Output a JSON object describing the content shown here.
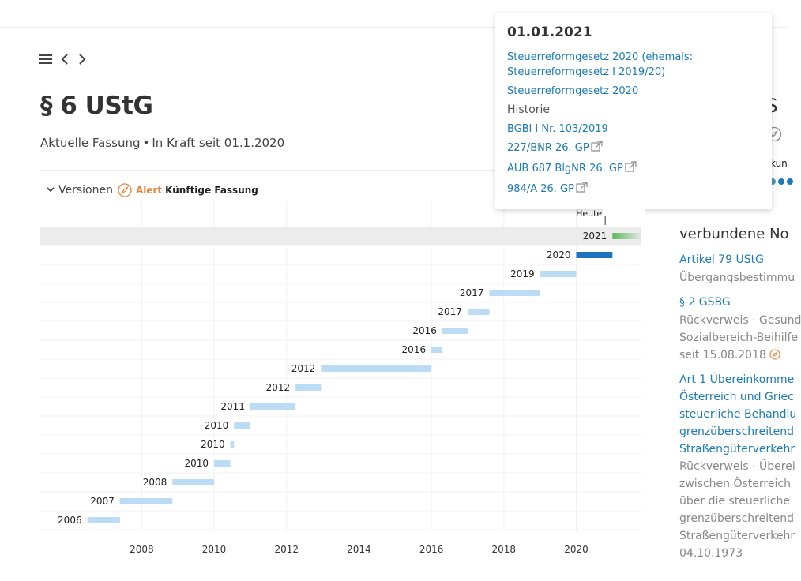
{
  "nav": {
    "menu_icon": "hamburger-icon",
    "back_icon": "chevron-left-icon",
    "forward_icon": "chevron-right-icon"
  },
  "law": {
    "title": "§ 6 UStG",
    "status": "Aktuelle Fassung",
    "in_force": "In Kraft seit 01.1.2020"
  },
  "versions": {
    "label": "Versionen",
    "alert_label": "Alert",
    "future_label": "Künftige Fassung"
  },
  "chart_data": {
    "type": "gantt",
    "today_label": "Heute",
    "today_x": 2020.8,
    "xlim": [
      2005.2,
      2021.8
    ],
    "xticks": [
      2008,
      2010,
      2012,
      2014,
      2016,
      2018,
      2020
    ],
    "rows": [
      {
        "label": "2021",
        "start": 2021.0,
        "end": 2021.8,
        "style": "future"
      },
      {
        "label": "2020",
        "start": 2020.0,
        "end": 2021.0,
        "style": "current"
      },
      {
        "label": "2019",
        "start": 2019.0,
        "end": 2020.0,
        "style": "past"
      },
      {
        "label": "2017",
        "start": 2017.6,
        "end": 2019.0,
        "style": "past"
      },
      {
        "label": "2017",
        "start": 2017.0,
        "end": 2017.6,
        "style": "past"
      },
      {
        "label": "2016",
        "start": 2016.3,
        "end": 2017.0,
        "style": "past"
      },
      {
        "label": "2016",
        "start": 2016.0,
        "end": 2016.3,
        "style": "past"
      },
      {
        "label": "2012",
        "start": 2012.95,
        "end": 2016.0,
        "style": "past"
      },
      {
        "label": "2012",
        "start": 2012.25,
        "end": 2012.95,
        "style": "past"
      },
      {
        "label": "2011",
        "start": 2011.0,
        "end": 2012.25,
        "style": "past"
      },
      {
        "label": "2010",
        "start": 2010.55,
        "end": 2011.0,
        "style": "past"
      },
      {
        "label": "2010",
        "start": 2010.45,
        "end": 2010.55,
        "style": "past"
      },
      {
        "label": "2010",
        "start": 2010.0,
        "end": 2010.45,
        "style": "past"
      },
      {
        "label": "2008",
        "start": 2008.85,
        "end": 2010.0,
        "style": "past"
      },
      {
        "label": "2007",
        "start": 2007.4,
        "end": 2008.85,
        "style": "past"
      },
      {
        "label": "2006",
        "start": 2006.5,
        "end": 2007.4,
        "style": "past"
      }
    ],
    "highlighted_row": 0,
    "colors": {
      "past": "#bcdcf5",
      "current": "#1e73be",
      "future": "#5cb85c",
      "highlight": "#ececec",
      "grid": "#f1f1f1"
    }
  },
  "popup": {
    "date": "01.01.2021",
    "link1": "Steuerreformgesetz 2020 (ehemals: Steuerreformgesetz I 2019/20)",
    "link2": "Steuerreformgesetz 2020",
    "history_label": "Historie",
    "link3": "BGBl I Nr. 103/2019",
    "link4": "227/BNR 26. GP",
    "link5": "AUB 687 BlgNR 26. GP",
    "link6": "984/A 26. GP",
    "external_icon": "external-link-icon"
  },
  "right_partial": {
    "title_fragment": "tS",
    "kun_fragment": "kun"
  },
  "related": {
    "heading": "verbundene No",
    "items": [
      {
        "link": "Artikel 79 UStG",
        "lines": [
          "Übergangsbestimmu"
        ]
      },
      {
        "link": "§ 2 GSBG",
        "lines": [
          "Rückverweis · Gesund",
          "Sozialbereich-Beihilfe",
          "seit 15.08.2018"
        ]
      },
      {
        "link_lines": [
          "Art 1 Übereinkomme",
          "Österreich und Griec",
          "steuerliche Behandlu",
          "grenzüberschreitend",
          "Straßengüterverkehr"
        ],
        "lines": [
          "Rückverweis · Überei",
          "zwischen Österreich",
          "über die steuerliche",
          "grenzüberschreitend",
          "Straßengüterverkehr",
          "04.10.1973"
        ]
      }
    ]
  }
}
